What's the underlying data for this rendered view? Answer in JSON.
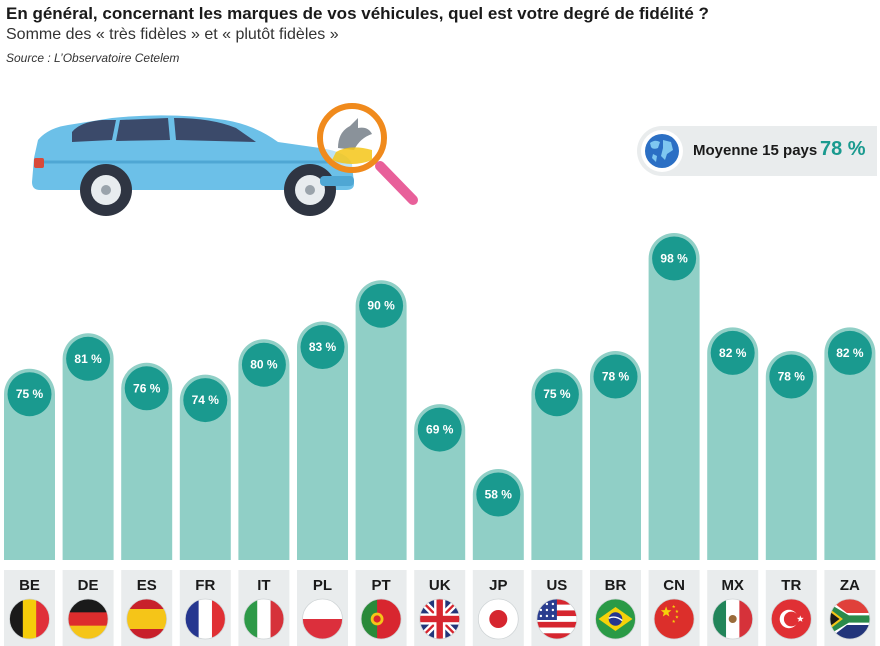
{
  "header": {
    "title": "En général, concernant les marques de vos véhicules, quel est votre degré de fidélité ?",
    "subtitle": "Somme des « très fidèles » et « plutôt fidèles »",
    "source": "Source : L’Observatoire Cetelem"
  },
  "average": {
    "label": "Moyenne 15 pays",
    "value": "78 %"
  },
  "colors": {
    "bar": "#90cfc6",
    "circle": "#1a9a8f",
    "label_bg": "#e9eced",
    "accent": "#1a9a8f"
  },
  "chart_data": {
    "type": "bar",
    "title": "En général, concernant les marques de vos véhicules, quel est votre degré de fidélité ?",
    "subtitle": "Somme des « très fidèles » et « plutôt fidèles »",
    "categories": [
      "BE",
      "DE",
      "ES",
      "FR",
      "IT",
      "PL",
      "PT",
      "UK",
      "JP",
      "US",
      "BR",
      "CN",
      "MX",
      "TR",
      "ZA"
    ],
    "values": [
      75,
      81,
      76,
      74,
      80,
      83,
      90,
      69,
      58,
      75,
      78,
      98,
      82,
      78,
      82
    ],
    "labels": [
      "75 %",
      "81 %",
      "76 %",
      "74 %",
      "80 %",
      "83 %",
      "90 %",
      "69 %",
      "58 %",
      "75 %",
      "78 %",
      "98 %",
      "82 %",
      "78 %",
      "82 %"
    ],
    "unit": "%",
    "xlabel": "",
    "ylabel": "",
    "grid": false,
    "legend": "none"
  }
}
